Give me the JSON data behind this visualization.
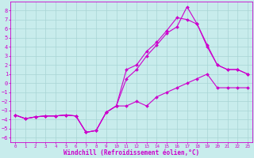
{
  "background_color": "#c8ecec",
  "grid_color": "#a8d4d4",
  "line_color": "#cc00cc",
  "xlabel": "Windchill (Refroidissement éolien,°C)",
  "xlim": [
    -0.5,
    23.5
  ],
  "ylim": [
    -6.5,
    9.0
  ],
  "xticks": [
    0,
    1,
    2,
    3,
    4,
    5,
    6,
    7,
    8,
    9,
    10,
    11,
    12,
    13,
    14,
    15,
    16,
    17,
    18,
    19,
    20,
    21,
    22,
    23
  ],
  "yticks": [
    -6,
    -5,
    -4,
    -3,
    -2,
    -1,
    0,
    1,
    2,
    3,
    4,
    5,
    6,
    7,
    8
  ],
  "line1_x": [
    0,
    1,
    2,
    3,
    4,
    5,
    6,
    7,
    8,
    9,
    10,
    11,
    12,
    13,
    14,
    15,
    16,
    17,
    18,
    19,
    20,
    21,
    22,
    23
  ],
  "line1_y": [
    -3.5,
    -3.9,
    -3.7,
    -3.6,
    -3.6,
    -3.5,
    -3.6,
    -5.4,
    -5.2,
    -3.2,
    -2.5,
    -2.5,
    -2.0,
    -2.5,
    -1.5,
    -1.0,
    -0.5,
    0.0,
    0.5,
    1.0,
    -0.5,
    -0.5,
    -0.5,
    -0.5
  ],
  "line2_x": [
    0,
    1,
    2,
    3,
    4,
    5,
    6,
    7,
    8,
    9,
    10,
    11,
    12,
    13,
    14,
    15,
    16,
    17,
    18,
    19,
    20,
    21,
    22,
    23
  ],
  "line2_y": [
    -3.5,
    -3.9,
    -3.7,
    -3.6,
    -3.6,
    -3.5,
    -3.6,
    -5.4,
    -5.2,
    -3.2,
    -2.5,
    0.5,
    1.5,
    3.0,
    4.2,
    5.5,
    6.2,
    8.4,
    6.5,
    4.0,
    2.0,
    1.5,
    1.5,
    1.0
  ],
  "line3_x": [
    0,
    1,
    2,
    3,
    4,
    5,
    6,
    7,
    8,
    9,
    10,
    11,
    12,
    13,
    14,
    15,
    16,
    17,
    18,
    19,
    20,
    21,
    22,
    23
  ],
  "line3_y": [
    -3.5,
    -3.9,
    -3.7,
    -3.6,
    -3.6,
    -3.5,
    -3.6,
    -5.4,
    -5.2,
    -3.2,
    -2.5,
    1.5,
    2.0,
    3.5,
    4.5,
    5.8,
    7.2,
    7.0,
    6.5,
    4.2,
    2.0,
    1.5,
    1.5,
    1.0
  ]
}
